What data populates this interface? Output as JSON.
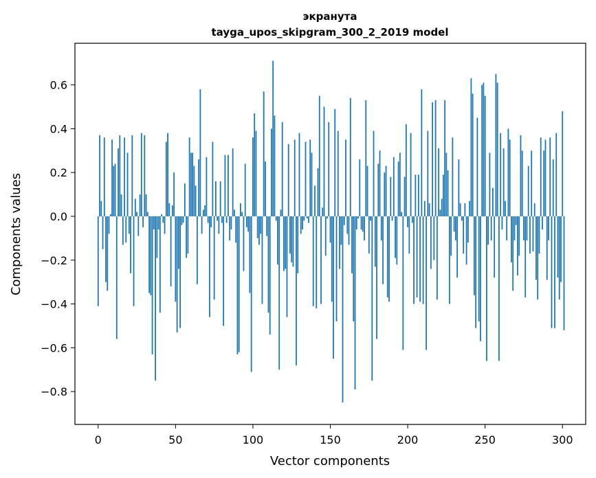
{
  "chart_data": {
    "type": "bar",
    "title": "экранута",
    "subtitle": "tayga_upos_skipgram_300_2_2019 model",
    "xlabel": "Vector components",
    "ylabel": "Components values",
    "xlim": [
      -15,
      315
    ],
    "ylim": [
      -0.95,
      0.79
    ],
    "xticks": [
      0,
      50,
      100,
      150,
      200,
      250,
      300
    ],
    "yticks": [
      -0.8,
      -0.6,
      -0.4,
      -0.2,
      0.0,
      0.2,
      0.4,
      0.6
    ],
    "ytick_labels": [
      "−0.8",
      "−0.6",
      "−0.4",
      "−0.2",
      "0.0",
      "0.2",
      "0.4",
      "0.6"
    ],
    "bar_color": "#1f77b4",
    "values": [
      -0.41,
      0.37,
      0.07,
      -0.15,
      0.36,
      -0.3,
      -0.34,
      -0.08,
      0.01,
      0.35,
      0.23,
      0.24,
      -0.56,
      0.31,
      0.37,
      0.1,
      -0.13,
      0.36,
      -0.12,
      0.29,
      -0.08,
      -0.26,
      0.37,
      -0.41,
      0.08,
      0.02,
      -0.09,
      0.1,
      0.38,
      -0.05,
      0.37,
      0.1,
      0.02,
      -0.35,
      -0.36,
      -0.63,
      -0.06,
      -0.75,
      -0.19,
      -0.06,
      -0.44,
      0.01,
      -0.03,
      -0.08,
      0.34,
      0.38,
      0.06,
      -0.32,
      0.05,
      0.2,
      -0.39,
      -0.53,
      -0.24,
      -0.51,
      -0.04,
      -0.03,
      0.15,
      -0.19,
      -0.17,
      0.36,
      0.29,
      0.29,
      0.23,
      0.14,
      -0.31,
      0.26,
      0.58,
      -0.08,
      0.03,
      0.05,
      0.27,
      -0.03,
      -0.46,
      -0.05,
      0.34,
      -0.38,
      0.16,
      -0.02,
      -0.08,
      0.16,
      -0.03,
      -0.5,
      0.28,
      -0.03,
      0.28,
      -0.11,
      -0.06,
      0.31,
      0.03,
      -0.12,
      -0.63,
      -0.62,
      0.06,
      0.02,
      -0.25,
      0.24,
      -0.05,
      -0.07,
      -0.35,
      -0.71,
      0.36,
      0.47,
      0.39,
      -0.1,
      -0.13,
      -0.08,
      -0.4,
      0.57,
      0.25,
      -0.09,
      -0.44,
      -0.54,
      0.4,
      0.71,
      0.46,
      -0.02,
      -0.22,
      -0.7,
      0.03,
      0.43,
      -0.25,
      -0.24,
      -0.46,
      0.33,
      -0.17,
      -0.21,
      -0.23,
      0.35,
      -0.68,
      -0.26,
      0.38,
      -0.08,
      -0.06,
      -0.02,
      0.34,
      -0.01,
      -0.03,
      0.35,
      0.29,
      -0.41,
      0.14,
      -0.42,
      0.22,
      0.55,
      -0.4,
      0.04,
      0.5,
      -0.18,
      -0.01,
      0.43,
      -0.12,
      -0.39,
      -0.65,
      0.49,
      -0.48,
      0.39,
      -0.24,
      -0.13,
      -0.85,
      -0.04,
      0.35,
      -0.08,
      -0.13,
      0.54,
      -0.26,
      -0.48,
      -0.79,
      -0.06,
      -0.01,
      0.26,
      -0.06,
      -0.07,
      -0.11,
      0.53,
      0.23,
      -0.17,
      -0.02,
      -0.75,
      0.39,
      -0.23,
      -0.56,
      0.24,
      0.3,
      -0.11,
      -0.31,
      0.2,
      0.23,
      -0.37,
      -0.39,
      0.18,
      -0.02,
      0.27,
      -0.19,
      -0.22,
      0.25,
      0.29,
      0.02,
      -0.61,
      0.18,
      0.42,
      -0.05,
      -0.17,
      0.38,
      -0.03,
      -0.4,
      0.19,
      -0.37,
      0.19,
      -0.39,
      0.58,
      -0.4,
      0.07,
      -0.61,
      0.39,
      0.06,
      -0.24,
      0.52,
      -0.2,
      0.53,
      -0.38,
      0.31,
      0.03,
      0.08,
      0.19,
      0.53,
      0.29,
      0.21,
      -0.4,
      -0.18,
      0.36,
      -0.07,
      -0.11,
      -0.28,
      0.26,
      0.06,
      -0.02,
      -0.17,
      0.06,
      -0.22,
      -0.12,
      0.07,
      0.63,
      0.56,
      -0.36,
      -0.51,
      0.45,
      -0.48,
      -0.57,
      0.6,
      0.61,
      0.55,
      -0.66,
      -0.13,
      0.29,
      -0.11,
      0.13,
      -0.28,
      0.65,
      0.61,
      -0.66,
      0.38,
      -0.06,
      0.31,
      0.07,
      -0.11,
      0.4,
      0.35,
      -0.21,
      -0.34,
      -0.11,
      -0.04,
      -0.27,
      -0.18,
      0.37,
      0.3,
      -0.11,
      -0.37,
      -0.11,
      0.23,
      -0.17,
      0.3,
      -0.16,
      0.06,
      -0.29,
      -0.38,
      -0.17,
      0.36,
      -0.06,
      0.3,
      0.35,
      -0.29,
      -0.11,
      0.36,
      -0.51,
      0.26,
      -0.51,
      0.38,
      -0.28,
      -0.38,
      -0.3,
      0.48,
      -0.52
    ],
    "value_precision": "approximate, read from chart"
  }
}
